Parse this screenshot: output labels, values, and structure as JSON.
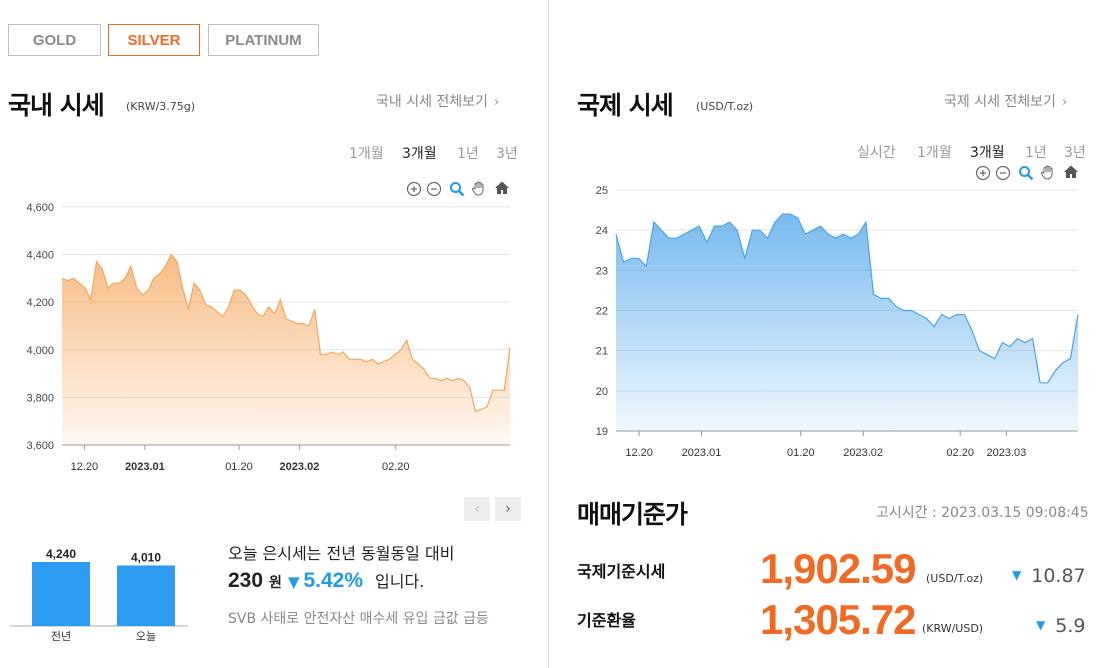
{
  "tabs": [
    {
      "label": "GOLD",
      "active": false
    },
    {
      "label": "SILVER",
      "active": true
    },
    {
      "label": "PLATINUM",
      "active": false
    }
  ],
  "domestic": {
    "title": "국내 시세",
    "unit": "(KRW/3.75g)",
    "view_all": "국내 시세 전체보기",
    "periods": [
      "1개월",
      "3개월",
      "1년",
      "3년"
    ],
    "active_period": "3개월",
    "chart_data": {
      "type": "area",
      "color": "#f5a65b",
      "ylim": [
        3600,
        4650
      ],
      "yticks": [
        3600,
        3800,
        4000,
        4200,
        4400,
        4600
      ],
      "ytick_labels": [
        "3,600",
        "3,800",
        "4,000",
        "4,200",
        "4,400",
        "4,600"
      ],
      "xtick_labels": [
        {
          "t": 0.05,
          "label": "12.20",
          "bold": false
        },
        {
          "t": 0.185,
          "label": "2023.01",
          "bold": true
        },
        {
          "t": 0.395,
          "label": "01.20",
          "bold": false
        },
        {
          "t": 0.53,
          "label": "2023.02",
          "bold": true
        },
        {
          "t": 0.745,
          "label": "02.20",
          "bold": false
        }
      ],
      "values": [
        4300,
        4290,
        4300,
        4280,
        4260,
        4210,
        4370,
        4340,
        4260,
        4280,
        4280,
        4300,
        4350,
        4260,
        4230,
        4250,
        4300,
        4320,
        4350,
        4400,
        4370,
        4260,
        4170,
        4280,
        4250,
        4190,
        4180,
        4160,
        4140,
        4180,
        4250,
        4250,
        4230,
        4190,
        4150,
        4140,
        4180,
        4150,
        4210,
        4130,
        4120,
        4110,
        4110,
        4100,
        4170,
        3980,
        3980,
        3990,
        3980,
        3990,
        3960,
        3960,
        3960,
        3950,
        3960,
        3940,
        3950,
        3960,
        3980,
        4000,
        4040,
        3960,
        3940,
        3920,
        3880,
        3880,
        3870,
        3880,
        3870,
        3880,
        3870,
        3840,
        3740,
        3750,
        3760,
        3830,
        3830,
        3830,
        4010
      ]
    }
  },
  "international": {
    "title": "국제 시세",
    "unit": "(USD/T.oz)",
    "view_all": "국제 시세 전체보기",
    "periods": [
      "실시간",
      "1개월",
      "3개월",
      "1년",
      "3년"
    ],
    "active_period": "3개월",
    "chart_data": {
      "type": "area",
      "color": "#4aa3e8",
      "ylim": [
        19,
        25
      ],
      "yticks": [
        19,
        20,
        21,
        22,
        23,
        24,
        25
      ],
      "ytick_labels": [
        "19",
        "20",
        "21",
        "22",
        "23",
        "24",
        "25"
      ],
      "xtick_labels": [
        {
          "t": 0.05,
          "label": "12.20",
          "bold": false
        },
        {
          "t": 0.185,
          "label": "2023.01",
          "bold": false
        },
        {
          "t": 0.4,
          "label": "01.20",
          "bold": false
        },
        {
          "t": 0.535,
          "label": "2023.02",
          "bold": false
        },
        {
          "t": 0.745,
          "label": "02.20",
          "bold": false
        },
        {
          "t": 0.845,
          "label": "2023.03",
          "bold": false
        }
      ],
      "values": [
        23.9,
        23.2,
        23.3,
        23.3,
        23.1,
        24.2,
        24.0,
        23.8,
        23.8,
        23.9,
        24.0,
        24.1,
        23.7,
        24.1,
        24.1,
        24.2,
        24.0,
        23.3,
        24.0,
        24.0,
        23.8,
        24.2,
        24.4,
        24.4,
        24.3,
        23.9,
        24.0,
        24.1,
        23.9,
        23.8,
        23.9,
        23.8,
        23.9,
        24.2,
        22.4,
        22.3,
        22.3,
        22.1,
        22.0,
        22.0,
        21.9,
        21.8,
        21.6,
        21.9,
        21.8,
        21.9,
        21.9,
        21.5,
        21.0,
        20.9,
        20.8,
        21.2,
        21.1,
        21.3,
        21.2,
        21.3,
        20.2,
        20.2,
        20.5,
        20.7,
        20.8,
        21.9
      ]
    }
  },
  "pager": {
    "prev": "‹",
    "next": "›"
  },
  "comparison": {
    "prev_label": "전년",
    "today_label": "오늘",
    "prev_value": 4240,
    "today_value": 4010,
    "prev_value_text": "4,240",
    "today_value_text": "4,010",
    "sentence": "오늘 은시세는 전년 동월동일 대비",
    "diff": "230",
    "diff_unit": "원",
    "down_arrow": "▼",
    "pct": "5.42%",
    "suffix": "입니다.",
    "news": "SVB 사태로 안전자산 매수세 유입 금값 급등"
  },
  "base_price": {
    "title": "매매기준가",
    "notice_label": "고시시간 :",
    "notice_time": "2023.03.15 09:08:45",
    "rows": [
      {
        "label": "국제기준시세",
        "value": "1,902.59",
        "unit": "(USD/T.oz)",
        "arrow": "▼",
        "change": "10.87"
      },
      {
        "label": "기준환율",
        "value": "1,305.72",
        "unit": "(KRW/USD)",
        "arrow": "▼",
        "change": "5.9"
      }
    ]
  },
  "colors": {
    "accent": "#f26a21",
    "down": "#1e9be9",
    "bar": "#2d9cf0"
  },
  "icons": [
    "zoom-in-icon",
    "zoom-out-icon",
    "magnifier-icon",
    "pan-hand-icon",
    "home-icon"
  ]
}
